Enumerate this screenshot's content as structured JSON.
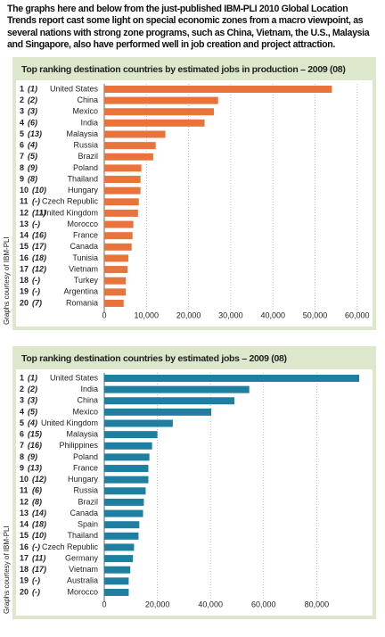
{
  "header": {
    "text": "The graphs here and below from the just-published IBM-PLI 2010 Global Location Trends report cast some light on special economic zones from a macro viewpoint, as several nations with strong zone programs, such as China, Vietnam, the U.S., Malaysia and Singapore, also have performed well in job creation and project attraction."
  },
  "chart_data": [
    {
      "type": "bar",
      "orientation": "horizontal",
      "title": "Top ranking destination countries by estimated jobs in production – 2009 (08)",
      "credit": "Graphs courtesy of IBM-PLI",
      "ranks": [
        "1",
        "2",
        "3",
        "4",
        "5",
        "6",
        "7",
        "8",
        "9",
        "10",
        "11",
        "12",
        "13",
        "14",
        "15",
        "16",
        "17",
        "18",
        "19",
        "20"
      ],
      "previous_ranks": [
        "(1)",
        "(2)",
        "(3)",
        "(6)",
        "(13)",
        "(4)",
        "(5)",
        "(9)",
        "(8)",
        "(10)",
        "(-)",
        "(11)",
        "(-)",
        "(16)",
        "(17)",
        "(18)",
        "(12)",
        "(-)",
        "(-)",
        "(7)"
      ],
      "categories": [
        "United States",
        "China",
        "Mexico",
        "India",
        "Malaysia",
        "Russia",
        "Brazil",
        "Poland",
        "Thailand",
        "Hungary",
        "Czech Republic",
        "United Kingdom",
        "Morocco",
        "France",
        "Canada",
        "Tunisia",
        "Vietnam",
        "Turkey",
        "Argentina",
        "Romania"
      ],
      "values": [
        54000,
        27000,
        26000,
        23800,
        14500,
        12200,
        11600,
        8800,
        8600,
        8600,
        8200,
        8000,
        6900,
        6700,
        6500,
        5700,
        5500,
        5100,
        5100,
        4600
      ],
      "color": "#e8743b",
      "xlim": [
        0,
        63000
      ],
      "xticks": [
        0,
        {
          "value": 10000,
          "label": "10,000"
        },
        {
          "value": 20000,
          "label": "20,000"
        },
        {
          "value": 30000,
          "label": "30,000"
        },
        {
          "value": 40000,
          "label": "40,000"
        },
        {
          "value": 50000,
          "label": "50,000"
        },
        {
          "value": 60000,
          "label": "60,000"
        }
      ],
      "grid": true
    },
    {
      "type": "bar",
      "orientation": "horizontal",
      "title": "Top ranking destination countries by estimated jobs – 2009 (08)",
      "credit": "Graphs courtesy of IBM-PLI",
      "ranks": [
        "1",
        "2",
        "3",
        "4",
        "5",
        "6",
        "7",
        "8",
        "9",
        "10",
        "11",
        "12",
        "13",
        "14",
        "15",
        "16",
        "17",
        "18",
        "19",
        "20"
      ],
      "previous_ranks": [
        "(1)",
        "(2)",
        "(3)",
        "(5)",
        "(4)",
        "(15)",
        "(16)",
        "(9)",
        "(13)",
        "(12)",
        "(6)",
        "(8)",
        "(14)",
        "(18)",
        "(10)",
        "(-)",
        "(11)",
        "(17)",
        "(-)",
        "(-)"
      ],
      "categories": [
        "United States",
        "India",
        "China",
        "Mexico",
        "United Kingdom",
        "Malaysia",
        "Philippines",
        "Poland",
        "France",
        "Hungary",
        "Russia",
        "Brazil",
        "Canada",
        "Spain",
        "Thailand",
        "Czech Republic",
        "Germany",
        "Vietnam",
        "Australia",
        "Morocco"
      ],
      "values": [
        96000,
        54600,
        49000,
        40300,
        25800,
        20000,
        18000,
        17000,
        16600,
        16600,
        15600,
        14900,
        14600,
        13200,
        12900,
        11200,
        10800,
        9800,
        9200,
        9200
      ],
      "color": "#1f7fa0",
      "xlim": [
        0,
        100000
      ],
      "xticks": [
        0,
        {
          "value": 20000,
          "label": "20,000"
        },
        {
          "value": 40000,
          "label": "40,000"
        },
        {
          "value": 60000,
          "label": "60,000"
        },
        {
          "value": 80000,
          "label": "80,000"
        }
      ],
      "grid": true
    }
  ]
}
